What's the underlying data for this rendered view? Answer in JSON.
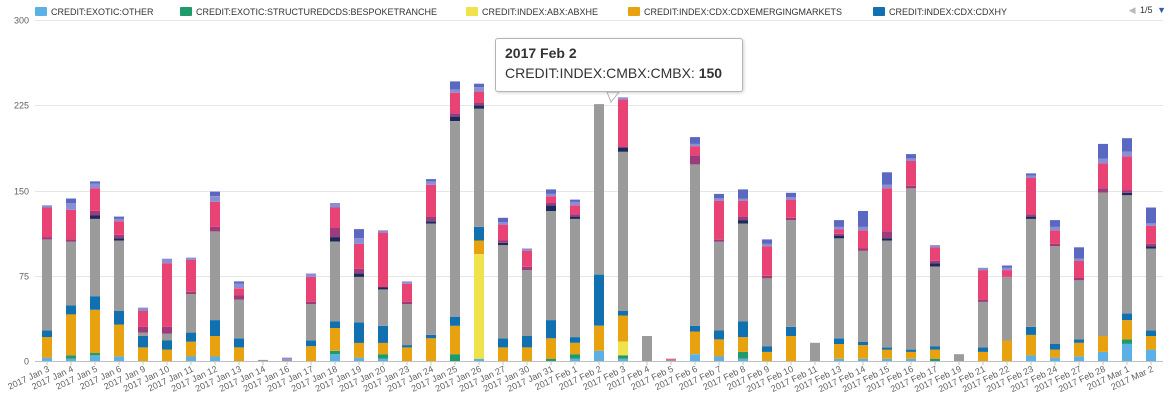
{
  "legend": {
    "items": [
      {
        "label": "CREDIT:EXOTIC:OTHER",
        "color": "#5bb1e6"
      },
      {
        "label": "CREDIT:EXOTIC:STRUCTUREDCDS:BESPOKETRANCHE",
        "color": "#1e9a6b"
      },
      {
        "label": "CREDIT:INDEX:ABX:ABXHE",
        "color": "#efe24a"
      },
      {
        "label": "CREDIT:INDEX:CDX:CDXEMERGINGMARKETS",
        "color": "#e8a20f"
      },
      {
        "label": "CREDIT:INDEX:CDX:CDXHY",
        "color": "#1170b0"
      }
    ],
    "nav": {
      "up": "◀",
      "page": "1/5",
      "down": "▼"
    }
  },
  "tooltip": {
    "title": "2017 Feb 2",
    "series": "CREDIT:INDEX:CMBX:CMBX:",
    "value": "150"
  },
  "chart_data": {
    "type": "bar",
    "stacked": true,
    "ylim": [
      0,
      300
    ],
    "yticks": [
      "0",
      "75",
      "150",
      "225",
      "300"
    ],
    "grid": true,
    "legend_position": "top",
    "categories": [
      "2017 Jan 3",
      "2017 Jan 4",
      "2017 Jan 5",
      "2017 Jan 6",
      "2017 Jan 9",
      "2017 Jan 10",
      "2017 Jan 11",
      "2017 Jan 12",
      "2017 Jan 13",
      "2017 Jan 14",
      "2017 Jan 16",
      "2017 Jan 17",
      "2017 Jan 18",
      "2017 Jan 19",
      "2017 Jan 20",
      "2017 Jan 23",
      "2017 Jan 24",
      "2017 Jan 25",
      "2017 Jan 26",
      "2017 Jan 27",
      "2017 Jan 30",
      "2017 Jan 31",
      "2017 Feb 1",
      "2017 Feb 2",
      "2017 Feb 3",
      "2017 Feb 4",
      "2017 Feb 5",
      "2017 Feb 6",
      "2017 Feb 7",
      "2017 Feb 8",
      "2017 Feb 9",
      "2017 Feb 10",
      "2017 Feb 11",
      "2017 Feb 13",
      "2017 Feb 14",
      "2017 Feb 15",
      "2017 Feb 16",
      "2017 Feb 17",
      "2017 Feb 19",
      "2017 Feb 21",
      "2017 Feb 22",
      "2017 Feb 23",
      "2017 Feb 24",
      "2017 Feb 27",
      "2017 Feb 28",
      "2017 Mar 1",
      "2017 Mar 2"
    ],
    "series": [
      {
        "name": "CREDIT:EXOTIC:OTHER",
        "color": "#5bb1e6",
        "values": [
          3,
          2,
          5,
          4,
          0,
          0,
          4,
          4,
          0,
          0,
          0,
          0,
          6,
          3,
          2,
          0,
          0,
          0,
          2,
          0,
          0,
          0,
          2,
          9,
          2,
          0,
          0,
          6,
          4,
          2,
          0,
          0,
          0,
          2,
          2,
          2,
          2,
          0,
          0,
          0,
          0,
          5,
          3,
          4,
          8,
          15,
          10
        ]
      },
      {
        "name": "CREDIT:EXOTIC:STRUCTUREDCDS:BESPOKETRANCHE",
        "color": "#1e9a6b",
        "values": [
          0,
          3,
          2,
          0,
          0,
          0,
          0,
          0,
          0,
          0,
          0,
          0,
          3,
          0,
          4,
          0,
          0,
          6,
          0,
          0,
          0,
          2,
          4,
          0,
          3,
          0,
          0,
          0,
          0,
          6,
          0,
          0,
          0,
          0,
          0,
          0,
          0,
          2,
          0,
          0,
          0,
          0,
          0,
          0,
          0,
          4,
          0
        ]
      },
      {
        "name": "CREDIT:INDEX:ABX:ABXHE",
        "color": "#efe24a",
        "values": [
          0,
          0,
          0,
          0,
          0,
          0,
          0,
          0,
          0,
          0,
          0,
          0,
          0,
          0,
          0,
          0,
          0,
          0,
          92,
          0,
          0,
          0,
          0,
          0,
          12,
          0,
          0,
          0,
          0,
          0,
          0,
          0,
          0,
          0,
          0,
          0,
          0,
          0,
          0,
          0,
          0,
          0,
          0,
          0,
          0,
          0,
          0
        ]
      },
      {
        "name": "CREDIT:INDEX:CDX:CDXEMERGINGMARKETS",
        "color": "#e8a20f",
        "values": [
          18,
          36,
          38,
          28,
          12,
          10,
          13,
          18,
          12,
          0,
          0,
          13,
          20,
          13,
          10,
          12,
          20,
          25,
          12,
          12,
          12,
          18,
          10,
          22,
          23,
          0,
          0,
          20,
          15,
          13,
          8,
          22,
          0,
          13,
          12,
          8,
          6,
          8,
          0,
          8,
          18,
          18,
          7,
          12,
          14,
          17,
          12
        ]
      },
      {
        "name": "CREDIT:INDEX:CDX:CDXHY",
        "color": "#1170b0",
        "values": [
          6,
          8,
          12,
          12,
          10,
          8,
          8,
          14,
          8,
          0,
          0,
          5,
          6,
          18,
          15,
          2,
          3,
          8,
          12,
          8,
          10,
          16,
          5,
          45,
          4,
          0,
          0,
          5,
          8,
          14,
          5,
          8,
          0,
          5,
          3,
          2,
          2,
          3,
          0,
          4,
          0,
          7,
          5,
          3,
          0,
          6,
          5
        ]
      },
      {
        "name": "",
        "color": "#9b9b9b",
        "values": [
          80,
          56,
          68,
          62,
          3,
          6,
          34,
          78,
          34,
          1,
          1,
          32,
          70,
          40,
          32,
          36,
          98,
          172,
          104,
          82,
          58,
          96,
          104,
          150,
          140,
          22,
          1,
          142,
          78,
          86,
          60,
          94,
          16,
          88,
          80,
          94,
          142,
          70,
          6,
          40,
          56,
          95,
          86,
          52,
          126,
          104,
          72
        ]
      },
      {
        "name": "",
        "color": "#1b2a5e",
        "values": [
          0,
          0,
          3,
          2,
          0,
          0,
          0,
          0,
          0,
          0,
          0,
          0,
          4,
          3,
          2,
          0,
          2,
          4,
          3,
          2,
          0,
          5,
          2,
          0,
          4,
          0,
          0,
          0,
          0,
          3,
          0,
          0,
          0,
          2,
          0,
          2,
          0,
          3,
          0,
          0,
          0,
          2,
          0,
          0,
          0,
          2,
          2
        ]
      },
      {
        "name": "",
        "color": "#9c3c7c",
        "values": [
          2,
          2,
          4,
          3,
          5,
          6,
          2,
          4,
          4,
          0,
          0,
          2,
          8,
          4,
          0,
          2,
          4,
          3,
          2,
          2,
          3,
          2,
          2,
          0,
          0,
          0,
          0,
          8,
          2,
          3,
          2,
          2,
          0,
          2,
          2,
          6,
          2,
          2,
          0,
          2,
          0,
          2,
          2,
          2,
          4,
          2,
          2
        ]
      },
      {
        "name": "",
        "color": "#e94375",
        "values": [
          26,
          26,
          20,
          12,
          14,
          56,
          28,
          22,
          6,
          0,
          0,
          22,
          18,
          22,
          48,
          16,
          28,
          18,
          10,
          14,
          14,
          6,
          8,
          0,
          42,
          0,
          1,
          8,
          34,
          14,
          26,
          16,
          0,
          4,
          16,
          38,
          22,
          12,
          0,
          26,
          6,
          32,
          12,
          15,
          22,
          30,
          16
        ]
      },
      {
        "name": "",
        "color": "#8a8fd4",
        "values": [
          2,
          6,
          4,
          2,
          3,
          4,
          2,
          5,
          4,
          0,
          2,
          3,
          4,
          5,
          2,
          2,
          3,
          3,
          4,
          2,
          2,
          2,
          3,
          0,
          2,
          0,
          0,
          2,
          2,
          2,
          2,
          2,
          0,
          2,
          3,
          3,
          2,
          2,
          0,
          2,
          2,
          2,
          3,
          2,
          4,
          4,
          2
        ]
      },
      {
        "name": "",
        "color": "#5b68c2",
        "values": [
          0,
          4,
          2,
          2,
          0,
          0,
          0,
          4,
          2,
          0,
          0,
          0,
          0,
          8,
          0,
          0,
          2,
          7,
          3,
          4,
          0,
          4,
          2,
          0,
          0,
          0,
          0,
          6,
          4,
          8,
          4,
          4,
          0,
          6,
          14,
          11,
          4,
          0,
          0,
          0,
          2,
          2,
          6,
          10,
          13,
          12,
          14
        ]
      }
    ]
  }
}
